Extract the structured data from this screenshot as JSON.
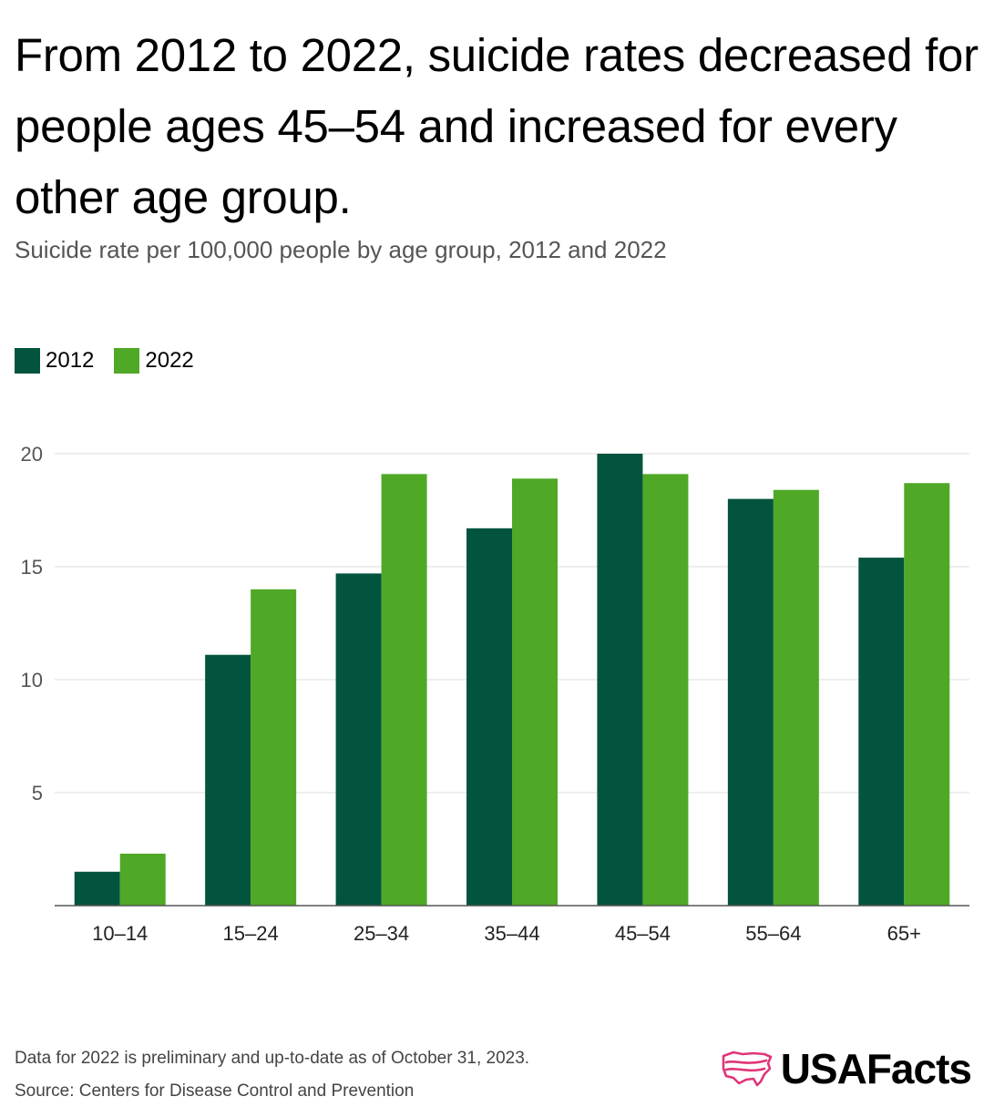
{
  "title": "From 2012 to 2022, suicide rates decreased for people ages 45–54 and increased for every other age group.",
  "subtitle": "Suicide rate per 100,000 people by age group, 2012 and 2022",
  "colors": {
    "series_2012": "#02543f",
    "series_2022": "#4fa826",
    "grid": "#dddddd",
    "axis": "#555555",
    "brand_icon": "#e0357a"
  },
  "chart_data": {
    "type": "bar",
    "categories": [
      "10–14",
      "15–24",
      "25–34",
      "35–44",
      "45–54",
      "55–64",
      "65+"
    ],
    "series": [
      {
        "name": "2012",
        "values": [
          1.5,
          11.1,
          14.7,
          16.7,
          20.0,
          18.0,
          15.4
        ]
      },
      {
        "name": "2022",
        "values": [
          2.3,
          14.0,
          19.1,
          18.9,
          19.1,
          18.4,
          18.7
        ]
      }
    ],
    "yticks": [
      5,
      10,
      15,
      20
    ],
    "ylim": [
      0,
      20
    ],
    "xlabel": "",
    "ylabel": "",
    "grid": true,
    "legend": "top-left"
  },
  "footnote": {
    "line1": "Data for 2022 is preliminary and up-to-date as of October 31, 2023.",
    "line2": "Source: Centers for Disease Control and Prevention"
  },
  "brand": {
    "name": "USAFacts",
    "icon": "usa-map-icon"
  }
}
